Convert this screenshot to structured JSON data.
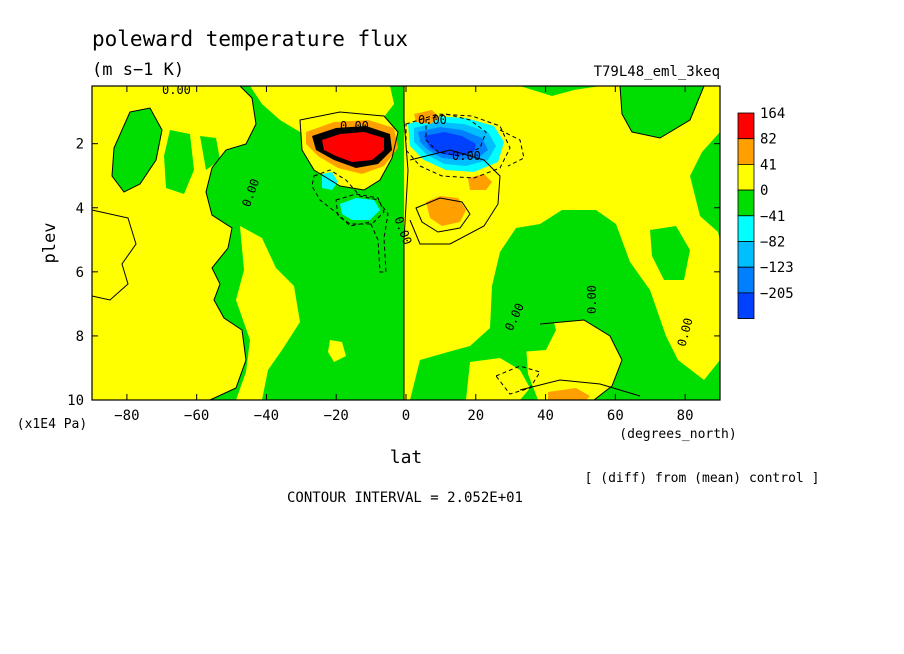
{
  "chart_data": {
    "type": "heatmap",
    "title": "poleward temperature flux",
    "subtitle": "(m s−1 K)",
    "run_label": "T79L48_eml_3keq",
    "xlabel": "lat",
    "x_units": "(degrees_north)",
    "ylabel": "plev",
    "y_units": "(x1E4 Pa)",
    "xlim": [
      -90,
      90
    ],
    "ylim": [
      0.2,
      10
    ],
    "y_inverted": true,
    "x_ticks": [
      -80,
      -60,
      -40,
      -20,
      0,
      20,
      40,
      60,
      80
    ],
    "x_tick_labels": [
      "−80",
      "−60",
      "−40",
      "−20",
      "0",
      "20",
      "40",
      "60",
      "80"
    ],
    "y_ticks": [
      2,
      4,
      6,
      8,
      10
    ],
    "y_tick_labels": [
      "2",
      "4",
      "6",
      "8",
      "10"
    ],
    "colorbar": {
      "levels": [
        "164",
        "82",
        "41",
        "0",
        "−41",
        "−82",
        "−123",
        "−205"
      ],
      "colors": [
        "#ff0000",
        "#ff9f00",
        "#ffff00",
        "#00dd00",
        "#00ffff",
        "#00bfff",
        "#0080ff",
        "#0040ff"
      ]
    },
    "contour_labels": [
      {
        "lat": -68,
        "plev": 0.2,
        "text": "0.00"
      },
      {
        "lat": -14,
        "plev": 1.2,
        "text": "0.00"
      },
      {
        "lat": -45,
        "plev": 3.5,
        "text": "0.00"
      },
      {
        "lat": -2,
        "plev": 4.2,
        "text": "0.00"
      },
      {
        "lat": 7,
        "plev": 1.2,
        "text": "0.00"
      },
      {
        "lat": 17,
        "plev": 2.4,
        "text": "0.00"
      },
      {
        "lat": 31,
        "plev": 7.4,
        "text": "0.00"
      },
      {
        "lat": 52,
        "plev": 6.8,
        "text": "0.00"
      },
      {
        "lat": 77,
        "plev": 8.1,
        "text": "0.00"
      }
    ],
    "features": [
      {
        "lat_range": [
          -27,
          -5
        ],
        "plev_range": [
          1.1,
          3.0
        ],
        "max": 164,
        "sign": "positive"
      },
      {
        "lat_range": [
          2,
          22
        ],
        "plev_range": [
          1.1,
          3.0
        ],
        "min": -205,
        "sign": "negative"
      },
      {
        "lat_range": [
          5,
          16
        ],
        "plev_range": [
          3.5,
          4.8
        ],
        "max": 82,
        "sign": "positive"
      },
      {
        "lat_range": [
          -20,
          -8
        ],
        "plev_range": [
          3.6,
          4.5
        ],
        "min": -82,
        "sign": "negative"
      },
      {
        "lat_range": [
          -24,
          -20
        ],
        "plev_range": [
          2.8,
          3.3
        ],
        "min": -82,
        "sign": "negative"
      },
      {
        "lat_range": [
          19,
          24
        ],
        "plev_range": [
          2.9,
          3.2
        ],
        "max": 82,
        "sign": "positive"
      }
    ],
    "contour_interval": "CONTOUR INTERVAL = 2.052E+01",
    "comparison_note": "[ (diff) from (mean) control ]"
  }
}
